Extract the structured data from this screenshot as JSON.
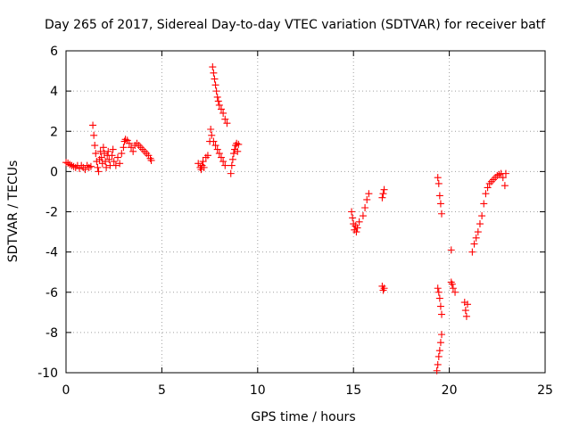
{
  "chart_data": {
    "type": "scatter",
    "title": "Day 265 of 2017, Sidereal Day-to-day VTEC variation (SDTVAR) for receiver batf",
    "xlabel": "GPS time / hours",
    "ylabel": "SDTVAR / TECUs",
    "xlim": [
      0,
      25
    ],
    "ylim": [
      -10,
      6
    ],
    "xticks": [
      0,
      5,
      10,
      15,
      20,
      25
    ],
    "yticks": [
      -10,
      -8,
      -6,
      -4,
      -2,
      0,
      2,
      4,
      6
    ],
    "xtick_labels": [
      "0",
      "5",
      "10",
      "15",
      "20",
      "25"
    ],
    "ytick_labels": [
      "-10",
      "-8",
      "-6",
      "-4",
      "-2",
      "0",
      "2",
      "4",
      "6"
    ],
    "grid": true,
    "marker": "+",
    "series": [
      {
        "name": "SDTVAR",
        "color": "#ff0000",
        "points": [
          [
            0.0,
            0.45
          ],
          [
            0.1,
            0.42
          ],
          [
            0.2,
            0.35
          ],
          [
            0.3,
            0.3
          ],
          [
            0.4,
            0.25
          ],
          [
            0.5,
            0.2
          ],
          [
            0.6,
            0.3
          ],
          [
            0.7,
            0.15
          ],
          [
            0.8,
            0.3
          ],
          [
            0.9,
            0.2
          ],
          [
            1.0,
            0.1
          ],
          [
            1.1,
            0.3
          ],
          [
            1.2,
            0.2
          ],
          [
            1.3,
            0.25
          ],
          [
            1.4,
            2.3
          ],
          [
            1.45,
            1.8
          ],
          [
            1.5,
            1.3
          ],
          [
            1.55,
            0.9
          ],
          [
            1.6,
            0.5
          ],
          [
            1.65,
            0.2
          ],
          [
            1.7,
            0.0
          ],
          [
            1.75,
            0.6
          ],
          [
            1.8,
            1.0
          ],
          [
            1.85,
            0.7
          ],
          [
            1.9,
            0.4
          ],
          [
            1.95,
            1.2
          ],
          [
            2.0,
            0.9
          ],
          [
            2.05,
            0.5
          ],
          [
            2.1,
            0.2
          ],
          [
            2.15,
            0.8
          ],
          [
            2.2,
            1.0
          ],
          [
            2.25,
            0.6
          ],
          [
            2.3,
            0.3
          ],
          [
            2.4,
            0.8
          ],
          [
            2.45,
            1.1
          ],
          [
            2.5,
            0.5
          ],
          [
            2.6,
            0.3
          ],
          [
            2.7,
            0.7
          ],
          [
            2.8,
            0.4
          ],
          [
            2.9,
            0.9
          ],
          [
            3.0,
            1.2
          ],
          [
            3.05,
            1.5
          ],
          [
            3.1,
            1.6
          ],
          [
            3.2,
            1.55
          ],
          [
            3.3,
            1.4
          ],
          [
            3.4,
            1.2
          ],
          [
            3.5,
            1.0
          ],
          [
            3.6,
            1.3
          ],
          [
            3.7,
            1.4
          ],
          [
            3.8,
            1.3
          ],
          [
            3.9,
            1.2
          ],
          [
            4.0,
            1.1
          ],
          [
            4.1,
            1.0
          ],
          [
            4.2,
            0.9
          ],
          [
            4.3,
            0.8
          ],
          [
            4.4,
            0.65
          ],
          [
            4.45,
            0.55
          ],
          [
            6.9,
            0.4
          ],
          [
            7.0,
            0.2
          ],
          [
            7.05,
            0.1
          ],
          [
            7.1,
            0.3
          ],
          [
            7.15,
            0.5
          ],
          [
            7.2,
            0.2
          ],
          [
            7.3,
            0.7
          ],
          [
            7.4,
            0.8
          ],
          [
            7.5,
            1.5
          ],
          [
            7.55,
            2.1
          ],
          [
            7.6,
            1.8
          ],
          [
            7.7,
            1.5
          ],
          [
            7.8,
            1.3
          ],
          [
            7.9,
            1.1
          ],
          [
            8.0,
            0.9
          ],
          [
            8.1,
            0.7
          ],
          [
            8.2,
            0.5
          ],
          [
            8.3,
            0.3
          ],
          [
            7.65,
            5.2
          ],
          [
            7.7,
            4.9
          ],
          [
            7.75,
            4.6
          ],
          [
            7.8,
            4.3
          ],
          [
            7.85,
            4.0
          ],
          [
            7.9,
            3.7
          ],
          [
            7.95,
            3.5
          ],
          [
            8.0,
            3.3
          ],
          [
            8.1,
            3.1
          ],
          [
            8.2,
            2.9
          ],
          [
            8.3,
            2.6
          ],
          [
            8.4,
            2.4
          ],
          [
            8.6,
            -0.1
          ],
          [
            8.65,
            0.3
          ],
          [
            8.7,
            0.6
          ],
          [
            8.75,
            0.9
          ],
          [
            8.8,
            1.1
          ],
          [
            8.85,
            1.3
          ],
          [
            8.9,
            1.4
          ],
          [
            8.95,
            1.0
          ],
          [
            9.0,
            1.35
          ],
          [
            14.9,
            -2.0
          ],
          [
            14.95,
            -2.3
          ],
          [
            15.0,
            -2.6
          ],
          [
            15.05,
            -2.9
          ],
          [
            15.1,
            -2.7
          ],
          [
            15.15,
            -3.0
          ],
          [
            15.2,
            -2.8
          ],
          [
            15.3,
            -2.5
          ],
          [
            15.5,
            -2.2
          ],
          [
            15.6,
            -1.8
          ],
          [
            15.7,
            -1.4
          ],
          [
            15.8,
            -1.1
          ],
          [
            16.5,
            -1.3
          ],
          [
            16.55,
            -1.1
          ],
          [
            16.6,
            -0.9
          ],
          [
            16.5,
            -5.7
          ],
          [
            16.55,
            -5.9
          ],
          [
            16.6,
            -5.8
          ],
          [
            19.4,
            -0.3
          ],
          [
            19.45,
            -0.6
          ],
          [
            19.5,
            -1.2
          ],
          [
            19.55,
            -1.6
          ],
          [
            19.6,
            -2.1
          ],
          [
            19.4,
            -5.8
          ],
          [
            19.45,
            -6.0
          ],
          [
            19.5,
            -6.3
          ],
          [
            19.55,
            -6.7
          ],
          [
            19.6,
            -7.1
          ],
          [
            19.35,
            -9.9
          ],
          [
            19.4,
            -9.6
          ],
          [
            19.45,
            -9.2
          ],
          [
            19.5,
            -8.9
          ],
          [
            19.55,
            -8.5
          ],
          [
            19.6,
            -8.1
          ],
          [
            20.1,
            -3.9
          ],
          [
            20.1,
            -5.5
          ],
          [
            20.15,
            -5.6
          ],
          [
            20.2,
            -5.8
          ],
          [
            20.3,
            -6.0
          ],
          [
            20.8,
            -6.5
          ],
          [
            20.85,
            -6.9
          ],
          [
            20.9,
            -7.2
          ],
          [
            20.95,
            -6.6
          ],
          [
            21.2,
            -4.0
          ],
          [
            21.3,
            -3.6
          ],
          [
            21.4,
            -3.3
          ],
          [
            21.5,
            -3.0
          ],
          [
            21.6,
            -2.6
          ],
          [
            21.7,
            -2.2
          ],
          [
            21.8,
            -1.6
          ],
          [
            21.9,
            -1.1
          ],
          [
            22.0,
            -0.8
          ],
          [
            22.1,
            -0.6
          ],
          [
            22.2,
            -0.5
          ],
          [
            22.3,
            -0.4
          ],
          [
            22.4,
            -0.3
          ],
          [
            22.5,
            -0.2
          ],
          [
            22.6,
            -0.15
          ],
          [
            22.7,
            -0.1
          ],
          [
            22.8,
            -0.3
          ],
          [
            22.9,
            -0.7
          ],
          [
            22.95,
            -0.1
          ]
        ]
      }
    ]
  }
}
